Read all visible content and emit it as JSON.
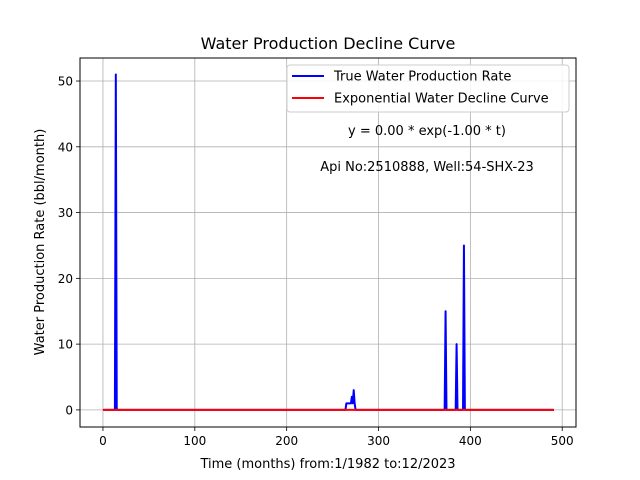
{
  "chart_data": {
    "type": "line",
    "title": "Water Production Decline Curve",
    "xlabel": "Time (months) from:1/1982 to:12/2023",
    "ylabel": "Water Production Rate (bbl/month)",
    "xlim": [
      -25,
      515
    ],
    "ylim": [
      -2.6,
      53.5
    ],
    "xticks": [
      0,
      100,
      200,
      300,
      400,
      500
    ],
    "yticks": [
      0,
      10,
      20,
      30,
      40,
      50
    ],
    "grid": true,
    "legend_position": "top-right",
    "annotations": [
      "y = 0.00 * exp(-1.00 * t)",
      "Api No:2510888, Well:54-SHX-23"
    ],
    "series": [
      {
        "name": "True Water Production Rate",
        "color": "#0000ff",
        "x": [
          0,
          13,
          14,
          15,
          16,
          264,
          265,
          270,
          271,
          272,
          273,
          274,
          275,
          372,
          373,
          374,
          384,
          385,
          386,
          392,
          393,
          394,
          491
        ],
        "y": [
          0,
          0,
          51,
          0,
          0,
          0,
          1,
          1,
          2,
          1,
          3,
          1,
          0,
          0,
          15,
          0,
          0,
          10,
          0,
          0,
          25,
          0,
          0
        ]
      },
      {
        "name": "Exponential Water Decline Curve",
        "color": "#ff0000",
        "x": [
          0,
          491
        ],
        "y": [
          0,
          0
        ]
      }
    ]
  }
}
